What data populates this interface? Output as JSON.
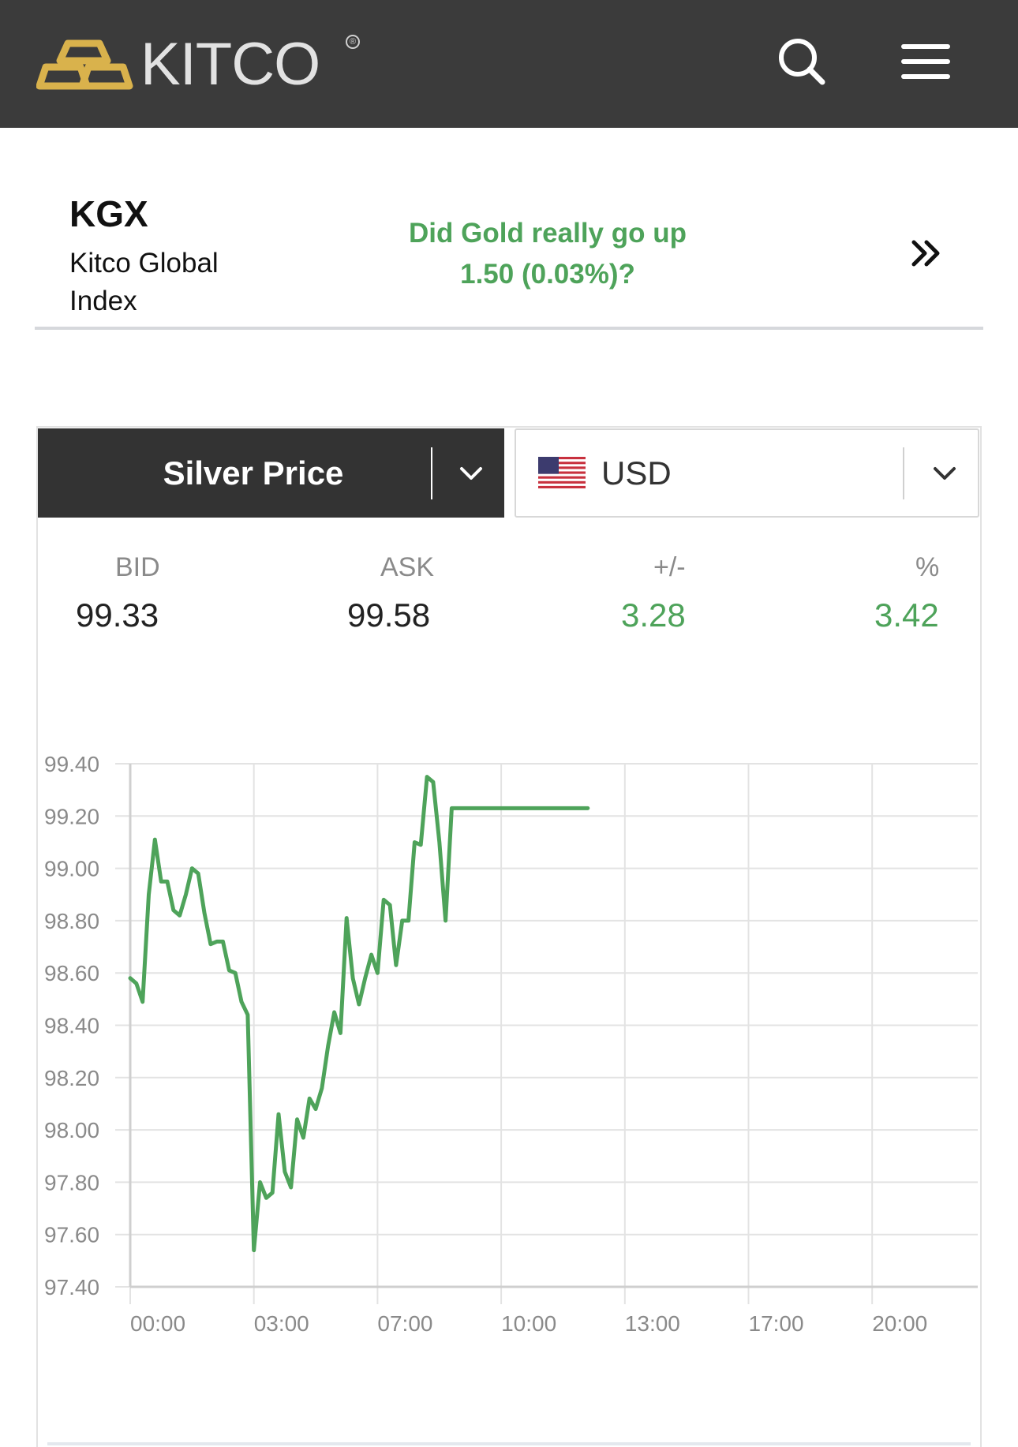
{
  "header": {
    "logo_text": "KITCO",
    "logo_reg": "®",
    "icons": {
      "search": "search-icon",
      "menu": "hamburger-menu-icon"
    },
    "logo_color": "#d9b24c"
  },
  "kgx": {
    "title": "KGX",
    "subtitle": "Kitco Global Index",
    "question_line1": "Did Gold really go up",
    "question_line2": "1.50 (0.03%)?",
    "arrow_icon": "double-chevron-right-icon"
  },
  "selectors": {
    "metal": "Silver Price",
    "currency": "USD",
    "currency_flag": "us-flag-icon"
  },
  "quote": {
    "bid_label": "BID",
    "bid": "99.33",
    "ask_label": "ASK",
    "ask": "99.58",
    "change_label": "+/-",
    "change": "3.28",
    "pct_label": "%",
    "pct": "3.42"
  },
  "colors": {
    "accent_green": "#4ea35a",
    "header_bg": "#3b3b3b",
    "dark_select": "#333333"
  },
  "chart_data": {
    "type": "line",
    "title": "",
    "xlabel": "",
    "ylabel": "",
    "ylim": [
      97.4,
      99.4
    ],
    "y_ticks": [
      "99.40",
      "99.20",
      "99.00",
      "98.80",
      "98.60",
      "98.40",
      "98.20",
      "98.00",
      "97.80",
      "97.60",
      "97.40"
    ],
    "x_ticks": [
      "00:00",
      "03:00",
      "07:00",
      "10:00",
      "13:00",
      "17:00",
      "20:00"
    ],
    "grid": true,
    "line_color": "#4ea35a",
    "series": [
      {
        "x": [
          0.0,
          0.05,
          0.1,
          0.15,
          0.2,
          0.25,
          0.3,
          0.35,
          0.4,
          0.45,
          0.5,
          0.55,
          0.6,
          0.65,
          0.7,
          0.75,
          0.8,
          0.85,
          0.9,
          0.95,
          1.0,
          1.05,
          1.1,
          1.15,
          1.2,
          1.25,
          1.3,
          1.35,
          1.4,
          1.45,
          1.5,
          1.55,
          1.6,
          1.65,
          1.7,
          1.75,
          1.8,
          1.85,
          1.9,
          1.95,
          2.0,
          2.05,
          2.1,
          2.15,
          2.2,
          2.25,
          2.3,
          2.35,
          2.4,
          2.45,
          2.5,
          2.55,
          2.6,
          2.65,
          2.7,
          2.75,
          2.8,
          2.85,
          2.9,
          2.95,
          3.0,
          3.05,
          3.1,
          3.15,
          3.2,
          3.25,
          3.3,
          3.35,
          3.4,
          3.45,
          3.5,
          3.55,
          3.6,
          3.65,
          3.7
        ],
        "y": [
          98.58,
          98.56,
          98.49,
          98.9,
          99.11,
          98.95,
          98.95,
          98.84,
          98.82,
          98.9,
          99.0,
          98.98,
          98.83,
          98.71,
          98.72,
          98.72,
          98.61,
          98.6,
          98.49,
          98.44,
          97.54,
          97.8,
          97.74,
          97.76,
          98.06,
          97.84,
          97.78,
          98.04,
          97.97,
          98.12,
          98.08,
          98.16,
          98.32,
          98.45,
          98.37,
          98.81,
          98.58,
          98.48,
          98.58,
          98.67,
          98.6,
          98.88,
          98.86,
          98.63,
          98.8,
          98.8,
          99.1,
          99.09,
          99.35,
          99.33,
          99.1,
          98.8,
          99.23,
          99.23,
          99.23,
          99.23,
          99.23,
          99.23,
          99.23,
          99.23,
          99.23,
          99.23,
          99.23,
          99.23,
          99.23,
          99.23,
          99.23,
          99.23,
          99.23,
          99.23,
          99.23,
          99.23,
          99.23,
          99.23,
          99.23
        ]
      }
    ]
  }
}
